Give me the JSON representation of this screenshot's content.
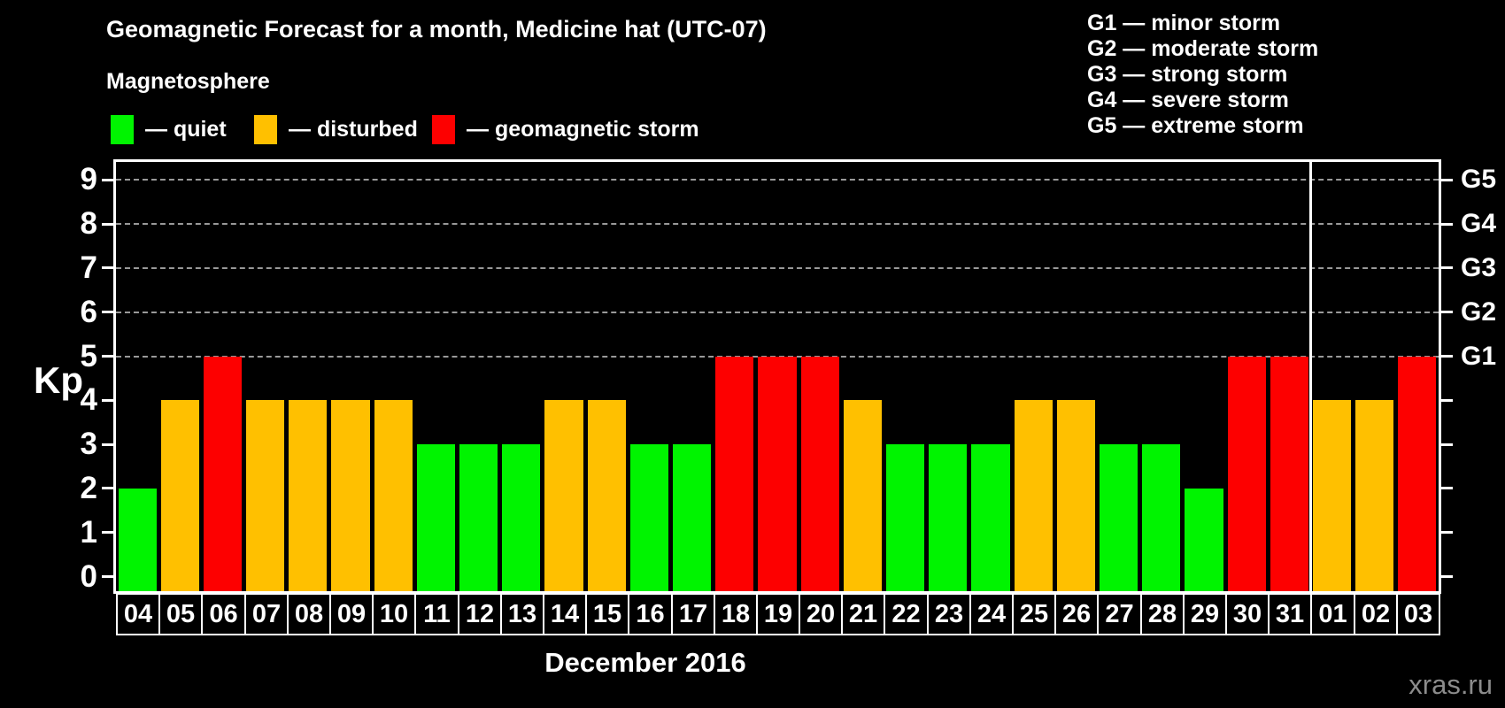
{
  "watermark": "xras.ru",
  "chart_data": {
    "type": "bar",
    "title": "Geomagnetic Forecast for a month, Medicine hat (UTC-07)",
    "subtitle": "Magnetosphere",
    "xlabel": "December 2016",
    "ylabel": "Kp",
    "ylim": [
      0,
      9
    ],
    "yticks": [
      0,
      1,
      2,
      3,
      4,
      5,
      6,
      7,
      8,
      9
    ],
    "grid_kp_levels": [
      5,
      6,
      7,
      8,
      9
    ],
    "grid": "dashed horizontal lines at storm levels only",
    "legend_position": "top",
    "categories": [
      "04",
      "05",
      "06",
      "07",
      "08",
      "09",
      "10",
      "11",
      "12",
      "13",
      "14",
      "15",
      "16",
      "17",
      "18",
      "19",
      "20",
      "21",
      "22",
      "23",
      "24",
      "25",
      "26",
      "27",
      "28",
      "29",
      "30",
      "31",
      "01",
      "02",
      "03"
    ],
    "values": [
      2,
      4,
      5,
      4,
      4,
      4,
      4,
      3,
      3,
      3,
      4,
      4,
      3,
      3,
      5,
      5,
      5,
      4,
      3,
      3,
      3,
      4,
      4,
      3,
      3,
      2,
      5,
      5,
      4,
      4,
      5
    ],
    "statuses": [
      "quiet",
      "disturbed",
      "storm",
      "disturbed",
      "disturbed",
      "disturbed",
      "disturbed",
      "quiet",
      "quiet",
      "quiet",
      "disturbed",
      "disturbed",
      "quiet",
      "quiet",
      "storm",
      "storm",
      "storm",
      "disturbed",
      "quiet",
      "quiet",
      "quiet",
      "disturbed",
      "disturbed",
      "quiet",
      "quiet",
      "quiet",
      "storm",
      "storm",
      "disturbed",
      "disturbed",
      "storm"
    ],
    "month_boundary_after_index": 27,
    "colors": {
      "quiet": "#00f400",
      "disturbed": "#ffc000",
      "storm": "#fd0000"
    },
    "right_axis_labels": [
      {
        "kp": 5,
        "label": "G1"
      },
      {
        "kp": 6,
        "label": "G2"
      },
      {
        "kp": 7,
        "label": "G3"
      },
      {
        "kp": 8,
        "label": "G4"
      },
      {
        "kp": 9,
        "label": "G5"
      }
    ]
  },
  "legend": {
    "items": [
      {
        "name": "quiet",
        "label": "— quiet",
        "color": "#00f400"
      },
      {
        "name": "disturbed",
        "label": "— disturbed",
        "color": "#ffc000"
      },
      {
        "name": "storm",
        "label": "— geomagnetic storm",
        "color": "#fd0000"
      }
    ]
  },
  "g_legend": {
    "items": [
      "G1 — minor storm",
      "G2 — moderate storm",
      "G3 — strong storm",
      "G4 — severe storm",
      "G5 — extreme storm"
    ]
  }
}
